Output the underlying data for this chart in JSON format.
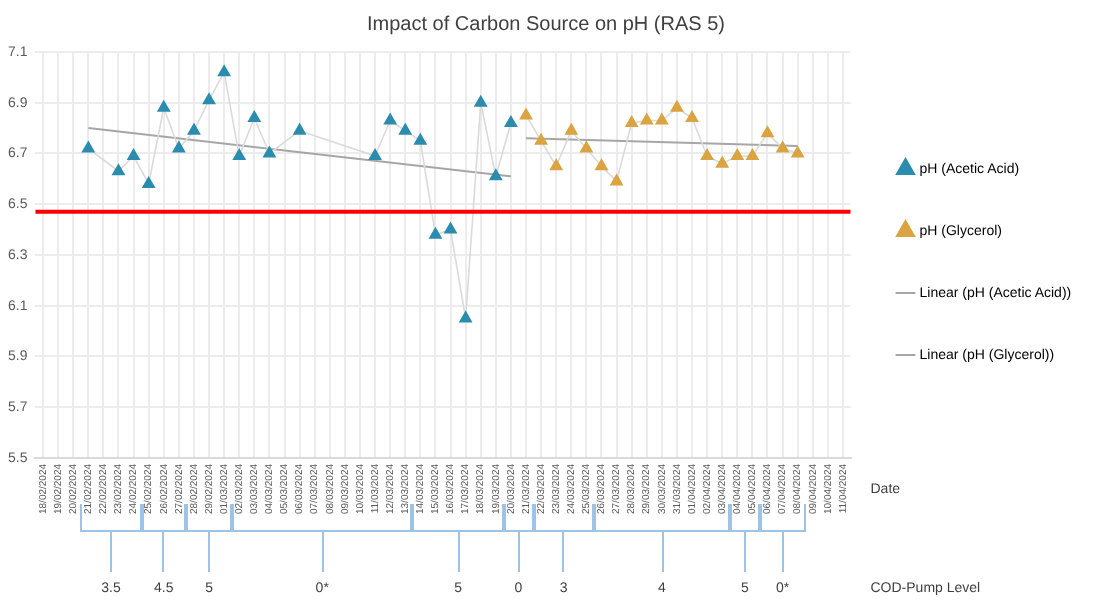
{
  "chart_data": {
    "type": "line",
    "title": "Impact of Carbon Source on pH (RAS 5)",
    "xlabel": "Date",
    "categories": [
      "18/02/2024",
      "19/02/2024",
      "20/02/2024",
      "21/02/2024",
      "22/02/2024",
      "23/02/2024",
      "24/02/2024",
      "25/02/2024",
      "26/02/2024",
      "27/02/2024",
      "28/02/2024",
      "29/02/2024",
      "01/03/2024",
      "02/03/2024",
      "03/03/2024",
      "04/03/2024",
      "05/03/2024",
      "06/03/2024",
      "07/03/2024",
      "08/03/2024",
      "09/03/2024",
      "10/03/2024",
      "11/03/2024",
      "12/03/2024",
      "13/03/2024",
      "14/03/2024",
      "15/03/2024",
      "16/03/2024",
      "17/03/2024",
      "18/03/2024",
      "19/03/2024",
      "20/03/2024",
      "21/03/2024",
      "22/03/2024",
      "23/03/2024",
      "24/03/2024",
      "25/03/2024",
      "26/03/2024",
      "27/03/2024",
      "28/03/2024",
      "29/03/2024",
      "30/03/2024",
      "31/03/2024",
      "01/04/2024",
      "02/04/2024",
      "03/04/2024",
      "04/04/2024",
      "05/04/2024",
      "06/04/2024",
      "07/04/2024",
      "08/04/2024",
      "09/04/2024",
      "10/04/2024",
      "11/04/2024"
    ],
    "series": [
      {
        "name": "pH (Acetic Acid)",
        "color": "#2b8cae",
        "marker": "triangle",
        "values": [
          null,
          null,
          null,
          6.72,
          null,
          6.63,
          6.69,
          6.58,
          6.88,
          6.72,
          6.79,
          6.91,
          7.02,
          6.69,
          6.84,
          6.7,
          null,
          6.79,
          null,
          null,
          null,
          null,
          6.69,
          6.83,
          6.79,
          6.75,
          6.38,
          6.4,
          6.05,
          6.9,
          6.61,
          6.82,
          null,
          null,
          null,
          null,
          null,
          null,
          null,
          null,
          null,
          null,
          null,
          null,
          null,
          null,
          null,
          null,
          null,
          null,
          null,
          null,
          null,
          null
        ]
      },
      {
        "name": "pH (Glycerol)",
        "color": "#d9a441",
        "marker": "triangle",
        "values": [
          null,
          null,
          null,
          null,
          null,
          null,
          null,
          null,
          null,
          null,
          null,
          null,
          null,
          null,
          null,
          null,
          null,
          null,
          null,
          null,
          null,
          null,
          null,
          null,
          null,
          null,
          null,
          null,
          null,
          null,
          null,
          null,
          6.85,
          6.75,
          6.65,
          6.79,
          6.72,
          6.65,
          6.59,
          6.82,
          6.83,
          6.83,
          6.88,
          6.84,
          6.69,
          6.66,
          6.69,
          6.69,
          6.78,
          6.72,
          6.7,
          null,
          null,
          null
        ]
      },
      {
        "name": "Linear (pH (Acetic Acid))",
        "type": "line",
        "color": "#a6a6a6",
        "marker": "none",
        "x": [
          "21/02/2024",
          "20/03/2024"
        ],
        "values": [
          6.8,
          6.61
        ]
      },
      {
        "name": "Linear (pH (Glycerol))",
        "type": "line",
        "color": "#a6a6a6",
        "marker": "none",
        "x": [
          "21/03/2024",
          "08/04/2024"
        ],
        "values": [
          6.76,
          6.73
        ]
      }
    ],
    "ylim": [
      5.5,
      7.1
    ],
    "yticks": [
      5.5,
      5.7,
      5.9,
      6.1,
      6.3,
      6.5,
      6.7,
      6.9,
      7.1
    ],
    "ref_lines": [
      {
        "axis": "y",
        "value": 6.47,
        "color": "#ff0000"
      }
    ],
    "grid": true,
    "legend": "right",
    "annotations": [
      "COD-Pump Level",
      "3.5",
      "4.5",
      "5",
      "0*",
      "5",
      "0",
      "3",
      "4",
      "5",
      "0*"
    ]
  }
}
